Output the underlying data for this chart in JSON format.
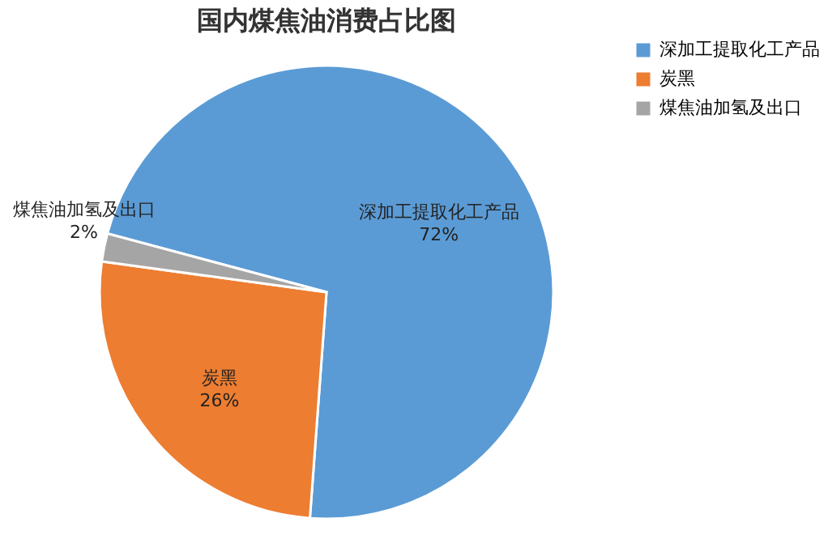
{
  "chart_data": {
    "type": "pie",
    "title": "国内煤焦油消费占比图",
    "categories": [
      "深加工提取化工产品",
      "炭黑",
      "煤焦油加氢及出口"
    ],
    "values": [
      72,
      26,
      2
    ],
    "colors": [
      "#5b9bd5",
      "#ed7d31",
      "#a5a5a5"
    ],
    "value_labels": [
      "72%",
      "26%",
      "2%"
    ],
    "legend": "right"
  }
}
